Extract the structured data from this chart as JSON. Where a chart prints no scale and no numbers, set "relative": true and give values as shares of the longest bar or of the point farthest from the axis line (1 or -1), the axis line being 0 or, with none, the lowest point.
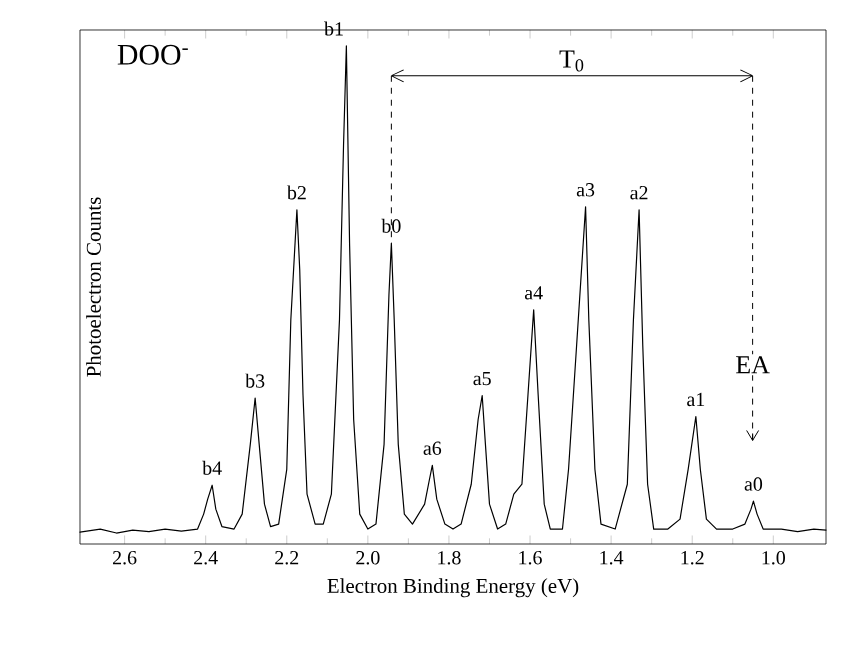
{
  "chart_data": {
    "type": "line",
    "relative": true,
    "title": "DOO$^{-}$",
    "xlabel": "Electron Binding Energy (eV)",
    "ylabel": "Photoelectron Counts",
    "xlim": [
      2.71,
      0.87
    ],
    "xticks": [
      2.6,
      2.4,
      2.2,
      {
        "value": 2.0,
        "label": "2.0"
      },
      1.8,
      1.6,
      1.4,
      1.2,
      {
        "value": 1.0,
        "label": "1.0"
      }
    ],
    "grid": false,
    "marker": "none",
    "line_style": "solid",
    "series": [
      {
        "color": "#000000",
        "x": [
          2.71,
          2.66,
          2.62,
          2.58,
          2.54,
          2.5,
          2.46,
          2.42,
          2.405,
          2.395,
          2.384,
          2.375,
          2.36,
          2.33,
          2.31,
          2.29,
          2.278,
          2.268,
          2.255,
          2.24,
          2.22,
          2.2,
          2.19,
          2.175,
          2.168,
          2.16,
          2.15,
          2.13,
          2.11,
          2.09,
          2.07,
          2.06,
          2.053,
          2.045,
          2.035,
          2.02,
          2.0,
          1.98,
          1.96,
          1.948,
          1.942,
          1.935,
          1.925,
          1.91,
          1.89,
          1.86,
          1.848,
          1.841,
          1.83,
          1.81,
          1.79,
          1.77,
          1.745,
          1.728,
          1.718,
          1.71,
          1.7,
          1.68,
          1.66,
          1.64,
          1.62,
          1.605,
          1.591,
          1.58,
          1.565,
          1.55,
          1.52,
          1.505,
          1.485,
          1.463,
          1.455,
          1.44,
          1.425,
          1.39,
          1.36,
          1.345,
          1.331,
          1.322,
          1.31,
          1.295,
          1.26,
          1.23,
          1.21,
          1.191,
          1.18,
          1.165,
          1.14,
          1.1,
          1.07,
          1.055,
          1.049,
          1.04,
          1.025,
          0.98,
          0.94,
          0.9,
          0.87
        ],
        "values": [
          0.024,
          0.03,
          0.022,
          0.028,
          0.025,
          0.03,
          0.026,
          0.03,
          0.06,
          0.09,
          0.118,
          0.07,
          0.035,
          0.03,
          0.06,
          0.2,
          0.293,
          0.2,
          0.08,
          0.035,
          0.04,
          0.15,
          0.45,
          0.671,
          0.55,
          0.3,
          0.1,
          0.04,
          0.04,
          0.1,
          0.45,
          0.8,
          1,
          0.6,
          0.25,
          0.06,
          0.03,
          0.04,
          0.2,
          0.5,
          0.604,
          0.45,
          0.2,
          0.06,
          0.04,
          0.08,
          0.13,
          0.158,
          0.09,
          0.04,
          0.03,
          0.04,
          0.12,
          0.25,
          0.298,
          0.2,
          0.08,
          0.03,
          0.04,
          0.1,
          0.12,
          0.3,
          0.47,
          0.3,
          0.08,
          0.03,
          0.03,
          0.15,
          0.4,
          0.677,
          0.45,
          0.15,
          0.04,
          0.03,
          0.12,
          0.45,
          0.671,
          0.4,
          0.12,
          0.03,
          0.03,
          0.05,
          0.15,
          0.256,
          0.15,
          0.05,
          0.03,
          0.03,
          0.04,
          0.07,
          0.086,
          0.06,
          0.03,
          0.03,
          0.025,
          0.03,
          0.028
        ]
      }
    ],
    "ref_lines": [
      {
        "axis": "x",
        "value": 1.942,
        "line_style": "dashed"
      },
      {
        "axis": "x",
        "value": 1.051,
        "label": "EA",
        "line_style": "dashed"
      }
    ],
    "annotations": [
      "T$_{0}$",
      {
        "text": "b4",
        "x": 2.384,
        "y": 0.118
      },
      {
        "text": "b3",
        "x": 2.278,
        "y": 0.293
      },
      {
        "text": "b2",
        "x": 2.175,
        "y": 0.671
      },
      {
        "text": "b1",
        "x": 2.053,
        "y": 1
      },
      {
        "text": "b0",
        "x": 1.942,
        "y": 0.604
      },
      {
        "text": "a6",
        "x": 1.841,
        "y": 0.158
      },
      {
        "text": "a5",
        "x": 1.718,
        "y": 0.298
      },
      {
        "text": "a4",
        "x": 1.591,
        "y": 0.47
      },
      {
        "text": "a3",
        "x": 1.463,
        "y": 0.677
      },
      {
        "text": "a2",
        "x": 1.331,
        "y": 0.671
      },
      {
        "text": "a1",
        "x": 1.191,
        "y": 0.256
      },
      {
        "text": "a0",
        "x": 1.049,
        "y": 0.086
      }
    ]
  }
}
